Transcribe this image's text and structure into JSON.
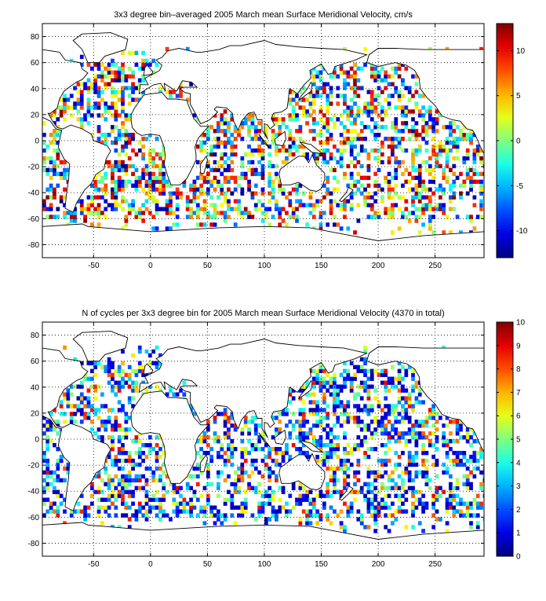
{
  "chart_data": [
    {
      "type": "heatmap",
      "title": "3x3 degree bin–averaged 2005 March mean Surface Meridional Velocity, cm/s",
      "xlim": [
        -95,
        293
      ],
      "ylim": [
        -90,
        90
      ],
      "x_ticks": [
        -50,
        0,
        50,
        100,
        150,
        200,
        250
      ],
      "y_ticks": [
        80,
        60,
        40,
        20,
        0,
        -20,
        -40,
        -60,
        -80
      ],
      "colorbar": {
        "min": -13,
        "max": 13,
        "ticks": [
          10,
          5,
          0,
          -5,
          -10
        ],
        "colormap": "jet"
      },
      "grid": "dotted",
      "bin_size_deg": 3,
      "seed": 7
    },
    {
      "type": "heatmap",
      "title": "N of cycles per 3x3 degree bin for 2005 March mean Surface Meridional Velocity (4370 in total)",
      "xlim": [
        -95,
        293
      ],
      "ylim": [
        -90,
        90
      ],
      "x_ticks": [
        -50,
        0,
        50,
        100,
        150,
        200,
        250
      ],
      "y_ticks": [
        80,
        60,
        40,
        20,
        0,
        -20,
        -40,
        -60,
        -80
      ],
      "colorbar": {
        "min": 0,
        "max": 10,
        "ticks": [
          10,
          9,
          8,
          7,
          6,
          5,
          4,
          3,
          2,
          1,
          0
        ],
        "colormap": "jet"
      },
      "grid": "dotted",
      "bin_size_deg": 3,
      "seed": 11
    }
  ]
}
